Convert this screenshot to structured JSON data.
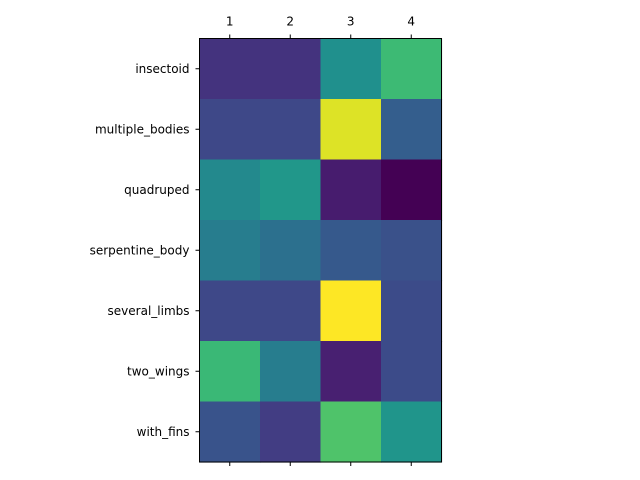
{
  "chart_data": {
    "type": "heatmap",
    "title": "",
    "xlabel": "",
    "ylabel": "",
    "x_categories": [
      "1",
      "2",
      "3",
      "4"
    ],
    "x_axis_position": "top-and-bottom",
    "y_categories": [
      "insectoid",
      "multiple_bodies",
      "quadruped",
      "serpentine_body",
      "several_limbs",
      "two_wings",
      "with_fins"
    ],
    "colormap": "viridis",
    "colorbar": false,
    "grid": false,
    "values": [
      [
        0.15,
        0.15,
        0.5,
        0.68
      ],
      [
        0.22,
        0.22,
        0.95,
        0.3
      ],
      [
        0.47,
        0.53,
        0.08,
        0.0
      ],
      [
        0.42,
        0.37,
        0.28,
        0.25
      ],
      [
        0.22,
        0.22,
        1.0,
        0.23
      ],
      [
        0.67,
        0.42,
        0.09,
        0.23
      ],
      [
        0.26,
        0.18,
        0.72,
        0.52
      ]
    ]
  }
}
